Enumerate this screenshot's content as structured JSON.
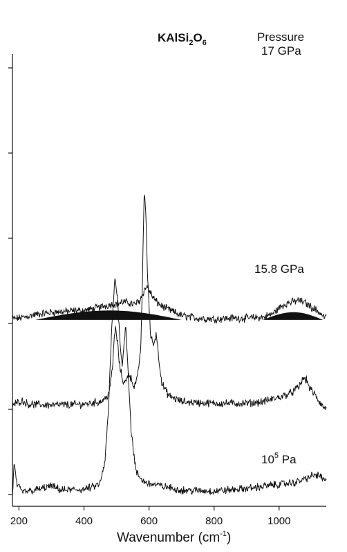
{
  "chart_data": {
    "type": "line",
    "title": "KAlSi2O6",
    "title_parts": {
      "a": "KAlSi",
      "b": "2",
      "c": "O",
      "d": "6"
    },
    "xlabel": "Wavenumber (cm-1)",
    "xlabel_parts": {
      "a": "Wavenumber (cm",
      "b": "-1",
      "c": ")"
    },
    "xlim": [
      180,
      1145
    ],
    "x_ticks": [
      200,
      400,
      600,
      800,
      1000
    ],
    "x_tick_labels": [
      "200",
      "400",
      "600",
      "800",
      "1000"
    ],
    "y_axis": "relative intensity (unlabeled, spectra offset vertically)",
    "legend": "none",
    "grid": false,
    "series": [
      {
        "name": "Pressure 17 GPa",
        "label_lines": [
          "Pressure",
          "17 GPa"
        ],
        "offset": 2.05,
        "x": [
          180,
          200,
          250,
          300,
          350,
          400,
          430,
          460,
          480,
          500,
          520,
          540,
          555,
          570,
          580,
          590,
          595,
          600,
          610,
          620,
          640,
          660,
          700,
          750,
          800,
          850,
          900,
          950,
          980,
          1000,
          1020,
          1040,
          1060,
          1080,
          1100,
          1120,
          1140
        ],
        "y": [
          0.01,
          0.02,
          0.06,
          0.09,
          0.1,
          0.11,
          0.13,
          0.16,
          0.18,
          0.19,
          0.21,
          0.2,
          0.18,
          0.22,
          0.3,
          0.38,
          0.39,
          0.35,
          0.28,
          0.22,
          0.16,
          0.12,
          0.05,
          0.02,
          0.01,
          0.02,
          0.02,
          0.03,
          0.07,
          0.14,
          0.19,
          0.21,
          0.23,
          0.2,
          0.15,
          0.1,
          0.03
        ],
        "envelopes": [
          {
            "x_start": 250,
            "x_end": 700,
            "peak_x": 480,
            "height": 0.11
          },
          {
            "x_start": 950,
            "x_end": 1135,
            "peak_x": 1045,
            "height": 0.09
          }
        ]
      },
      {
        "name": "15.8 GPa",
        "label_lines": [
          "15.8 GPa"
        ],
        "offset": 1.0,
        "x": [
          180,
          200,
          210,
          230,
          300,
          400,
          450,
          470,
          480,
          488,
          493,
          497,
          502,
          510,
          520,
          530,
          537,
          545,
          555,
          565,
          575,
          580,
          585,
          590,
          595,
          605,
          615,
          622,
          630,
          640,
          660,
          700,
          800,
          900,
          950,
          1000,
          1040,
          1060,
          1075,
          1085,
          1095,
          1110,
          1125,
          1140
        ],
        "y": [
          0.05,
          0.09,
          0.1,
          0.06,
          0.05,
          0.06,
          0.09,
          0.14,
          0.25,
          0.5,
          0.85,
          0.95,
          0.82,
          0.5,
          0.33,
          0.32,
          0.43,
          0.36,
          0.26,
          0.38,
          0.75,
          1.55,
          2.55,
          2.35,
          1.6,
          0.85,
          0.76,
          0.9,
          0.6,
          0.3,
          0.16,
          0.09,
          0.07,
          0.07,
          0.09,
          0.14,
          0.2,
          0.26,
          0.37,
          0.34,
          0.24,
          0.17,
          0.08,
          0.01
        ],
        "envelopes": []
      },
      {
        "name": "10^5 Pa",
        "label_lines": [
          "10",
          "5",
          " Pa"
        ],
        "offset": 0.0,
        "x": [
          180,
          185,
          195,
          210,
          250,
          280,
          300,
          330,
          400,
          430,
          450,
          465,
          475,
          485,
          495,
          503,
          510,
          518,
          522,
          528,
          535,
          545,
          560,
          580,
          600,
          700,
          800,
          900,
          1000,
          1050,
          1090,
          1110,
          1125,
          1140
        ],
        "y": [
          0.0,
          0.35,
          0.1,
          0.03,
          0.05,
          0.08,
          0.1,
          0.05,
          0.06,
          0.09,
          0.13,
          0.4,
          0.98,
          1.92,
          2.55,
          2.32,
          1.85,
          1.48,
          1.72,
          2.0,
          1.52,
          0.75,
          0.26,
          0.16,
          0.13,
          0.05,
          0.04,
          0.07,
          0.12,
          0.14,
          0.2,
          0.23,
          0.22,
          0.16
        ],
        "envelopes": []
      }
    ]
  }
}
